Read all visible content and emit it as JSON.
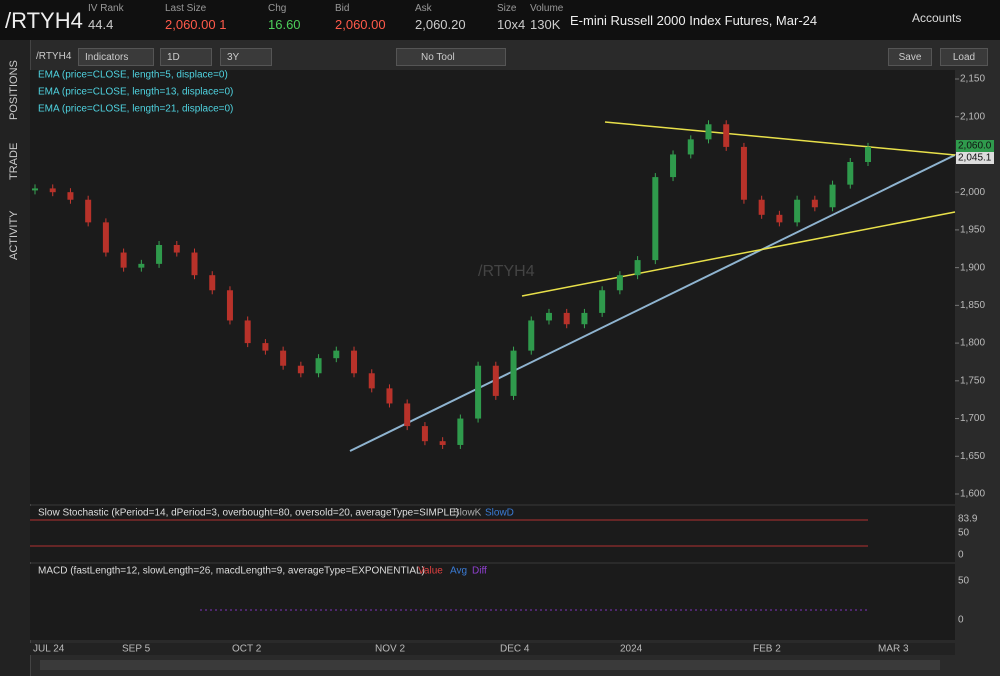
{
  "header": {
    "symbol": "/RTYH4",
    "fields": [
      {
        "label": "IV Rank",
        "value": "44.4"
      },
      {
        "label": "Last Size",
        "value": "2,060.00 1"
      },
      {
        "label": "Chg",
        "value": "16.60"
      },
      {
        "label": "Bid",
        "value": "2,060.00"
      },
      {
        "label": "Ask",
        "value": "2,060.20"
      },
      {
        "label": "Size",
        "value": "10x4"
      },
      {
        "label": "Volume",
        "value": "130K"
      }
    ],
    "description": "E-mini Russell 2000 Index Futures, Mar-24",
    "accounts": "Accounts"
  },
  "toolbar": {
    "symbol": "/RTYH4",
    "indicators": "Indicators",
    "aggregation": "1D",
    "range": "3Y",
    "tool": "No Tool",
    "save": "Save",
    "load": "Load"
  },
  "side_tabs": [
    "POSITIONS",
    "TRADE",
    "ACTIVITY"
  ],
  "studies": [
    "EMA (price=CLOSE, length=5, displace=0)",
    "EMA (price=CLOSE, length=13, displace=0)",
    "EMA (price=CLOSE, length=21, displace=0)"
  ],
  "price_chart": {
    "closes": [
      2005,
      2000,
      1990,
      1960,
      1920,
      1900,
      1905,
      1930,
      1920,
      1890,
      1870,
      1830,
      1800,
      1790,
      1770,
      1760,
      1780,
      1790,
      1760,
      1740,
      1720,
      1690,
      1670,
      1665,
      1700,
      1770,
      1730,
      1790,
      1830,
      1840,
      1825,
      1840,
      1870,
      1890,
      1910,
      2020,
      2050,
      2070,
      2090,
      2060,
      1990,
      1970,
      1960,
      1990,
      1980,
      2010,
      2040,
      2060
    ],
    "price_ticks": [
      {
        "value": 2150,
        "label": "2,150"
      },
      {
        "value": 2100,
        "label": "2,100"
      },
      {
        "value": 2050,
        "label": "2,050"
      },
      {
        "value": 2000,
        "label": "2,000"
      },
      {
        "value": 1950,
        "label": "1,950"
      },
      {
        "value": 1900,
        "label": "1,900"
      },
      {
        "value": 1850,
        "label": "1,850"
      },
      {
        "value": 1800,
        "label": "1,800"
      },
      {
        "value": 1750,
        "label": "1,750"
      },
      {
        "value": 1700,
        "label": "1,700"
      },
      {
        "value": 1650,
        "label": "1,650"
      },
      {
        "value": 1600,
        "label": "1,600"
      }
    ],
    "price_tags": [
      "2,060.0",
      "2,045.1"
    ],
    "watermark": "/RTYH4"
  },
  "stochastic": {
    "label": "Slow Stochastic (kPeriod=14, dPeriod=3, overbought=80, oversold=20, averageType=SIMPLE)",
    "legend": [
      "SlowK",
      "SlowD"
    ],
    "axis": [
      "83.9",
      "50",
      "0"
    ]
  },
  "macd": {
    "label": "MACD (fastLength=12, slowLength=26, macdLength=9, averageType=EXPONENTIAL)",
    "legend": [
      "Value",
      "Avg",
      "Diff"
    ],
    "axis": [
      "50",
      "0"
    ]
  },
  "date_axis": [
    "JUL 24",
    "SEP 5",
    "OCT 2",
    "NOV 2",
    "DEC 4",
    "2024",
    "FEB 2",
    "MAR 3"
  ]
}
